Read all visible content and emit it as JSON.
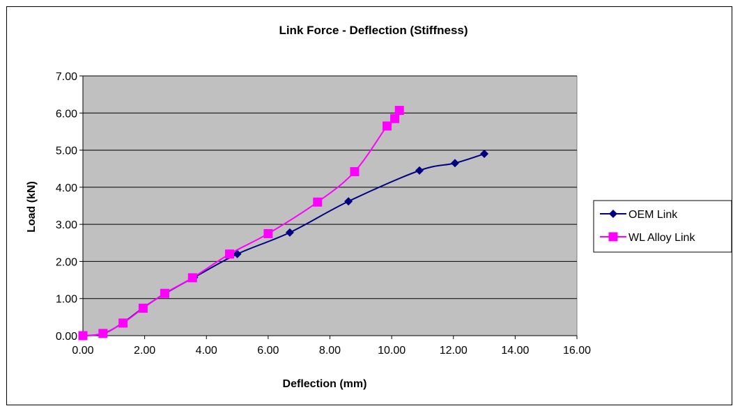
{
  "chart_data": {
    "type": "line",
    "title": "Link Force - Deflection (Stiffness)",
    "xlabel": "Deflection (mm)",
    "ylabel": "Load (kN)",
    "xlim": [
      0,
      16
    ],
    "ylim": [
      0,
      7
    ],
    "x_ticks": [
      "0.00",
      "2.00",
      "4.00",
      "6.00",
      "8.00",
      "10.00",
      "12.00",
      "14.00",
      "16.00"
    ],
    "y_ticks": [
      "0.00",
      "1.00",
      "2.00",
      "3.00",
      "4.00",
      "5.00",
      "6.00",
      "7.00"
    ],
    "grid": "horizontal",
    "plot_background": "#c0c0c0",
    "legend_position": "right",
    "series": [
      {
        "name": "OEM Link",
        "color": "#000080",
        "marker": "diamond",
        "points": [
          [
            0.0,
            0.0
          ],
          [
            0.65,
            0.05
          ],
          [
            1.3,
            0.35
          ],
          [
            1.95,
            0.75
          ],
          [
            2.65,
            1.13
          ],
          [
            3.6,
            1.57
          ],
          [
            5.0,
            2.2
          ],
          [
            6.7,
            2.78
          ],
          [
            8.6,
            3.62
          ],
          [
            10.9,
            4.45
          ],
          [
            12.05,
            4.65
          ],
          [
            13.0,
            4.9
          ]
        ]
      },
      {
        "name": "WL Alloy Link",
        "color": "#ff00ff",
        "marker": "square",
        "points": [
          [
            0.0,
            0.0
          ],
          [
            0.65,
            0.06
          ],
          [
            1.3,
            0.34
          ],
          [
            1.95,
            0.74
          ],
          [
            2.65,
            1.14
          ],
          [
            3.55,
            1.56
          ],
          [
            4.75,
            2.2
          ],
          [
            6.0,
            2.75
          ],
          [
            7.6,
            3.6
          ],
          [
            8.8,
            4.42
          ],
          [
            9.85,
            5.65
          ],
          [
            10.1,
            5.85
          ],
          [
            10.25,
            6.07
          ]
        ]
      }
    ]
  }
}
